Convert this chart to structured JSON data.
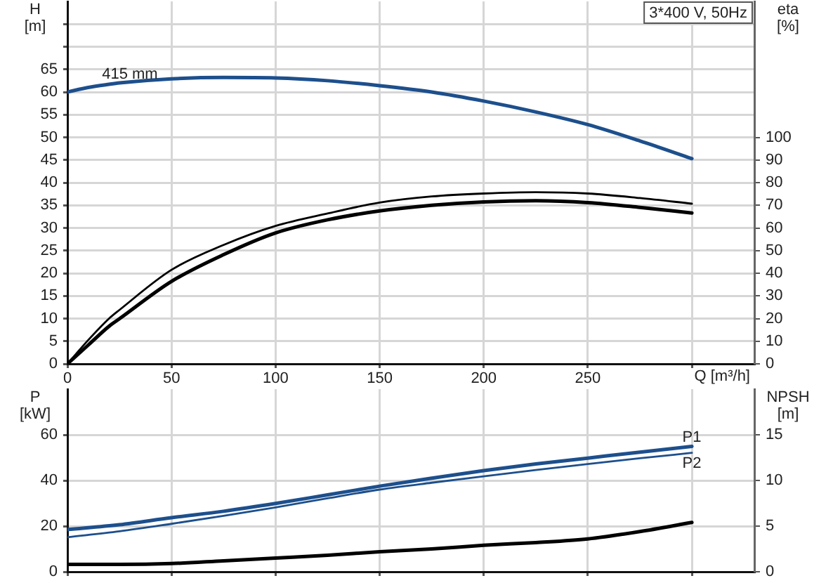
{
  "chart_data": [
    {
      "type": "line",
      "title": "3*400 V, 50Hz",
      "xlabel": "Q [m³/h]",
      "ylabel": "H [m]",
      "y2label": "eta [%]",
      "x": [
        0,
        10,
        20,
        25,
        50,
        75,
        100,
        125,
        150,
        175,
        200,
        225,
        250,
        275,
        300
      ],
      "xlim": [
        0,
        330
      ],
      "xticks": [
        0,
        50,
        100,
        150,
        200,
        250,
        {
          "value": 300,
          "label": null
        }
      ],
      "ylim": [
        0,
        80
      ],
      "yticks": [
        0,
        5,
        10,
        15,
        20,
        25,
        30,
        35,
        40,
        45,
        50,
        55,
        60,
        65,
        {
          "value": 70,
          "label": null
        },
        {
          "value": 75,
          "label": null
        }
      ],
      "y2lim": [
        0,
        160
      ],
      "y2ticks": [
        0,
        10,
        20,
        30,
        40,
        50,
        60,
        70,
        80,
        90,
        100
      ],
      "grid": true,
      "series": [
        {
          "color": "#1d4f8c",
          "values": [
            60.0,
            61.0,
            61.7,
            62.0,
            62.9,
            63.2,
            63.1,
            62.5,
            61.4,
            60.0,
            58.0,
            55.6,
            52.8,
            49.2,
            45.3
          ]
        },
        {
          "color": "#000000",
          "axis": "y2",
          "values": [
            0,
            10.5,
            20.0,
            23.8,
            41.5,
            52.5,
            60.9,
            66.4,
            71.2,
            73.9,
            75.2,
            75.8,
            75.2,
            73.2,
            70.7
          ]
        },
        {
          "color": "#000000",
          "axis": "y2",
          "values": [
            0,
            8.3,
            16.6,
            19.9,
            36.4,
            48.2,
            57.8,
            63.6,
            67.5,
            70.0,
            71.5,
            72.0,
            71.2,
            69.1,
            66.6
          ]
        }
      ],
      "annotations": [
        {
          "text": "415 mm",
          "x": 30,
          "y": 62.2
        }
      ]
    },
    {
      "type": "line",
      "ylabel": "P [kW]",
      "y2label": "NPSH [m]",
      "x": [
        0,
        25,
        50,
        75,
        100,
        125,
        150,
        175,
        200,
        225,
        250,
        275,
        300
      ],
      "xlim": [
        0,
        330
      ],
      "xticks": [
        0,
        50,
        100,
        150,
        200,
        250,
        300
      ],
      "ylim": [
        0,
        80
      ],
      "yticks": [
        0,
        20,
        40,
        60
      ],
      "y2lim": [
        0,
        20
      ],
      "y2ticks": [
        0,
        5,
        10,
        15
      ],
      "tick_labels": "y",
      "grid": true,
      "series": [
        {
          "name": "P1",
          "color": "#1d4f8c",
          "values": [
            18.5,
            20.6,
            23.7,
            26.5,
            29.9,
            33.7,
            37.5,
            41.0,
            44.3,
            47.2,
            49.8,
            52.4,
            54.9
          ]
        },
        {
          "name": "P2",
          "color": "#1d4f8c",
          "values": [
            15.1,
            17.7,
            21.0,
            24.5,
            28.2,
            32.2,
            36.0,
            39.0,
            41.8,
            44.6,
            47.2,
            49.7,
            52.1
          ]
        },
        {
          "color": "#000000",
          "axis": "y2",
          "values": [
            0.8,
            0.8,
            0.9,
            1.2,
            1.5,
            1.8,
            2.2,
            2.5,
            2.9,
            3.2,
            3.6,
            4.4,
            5.4
          ]
        }
      ]
    }
  ]
}
